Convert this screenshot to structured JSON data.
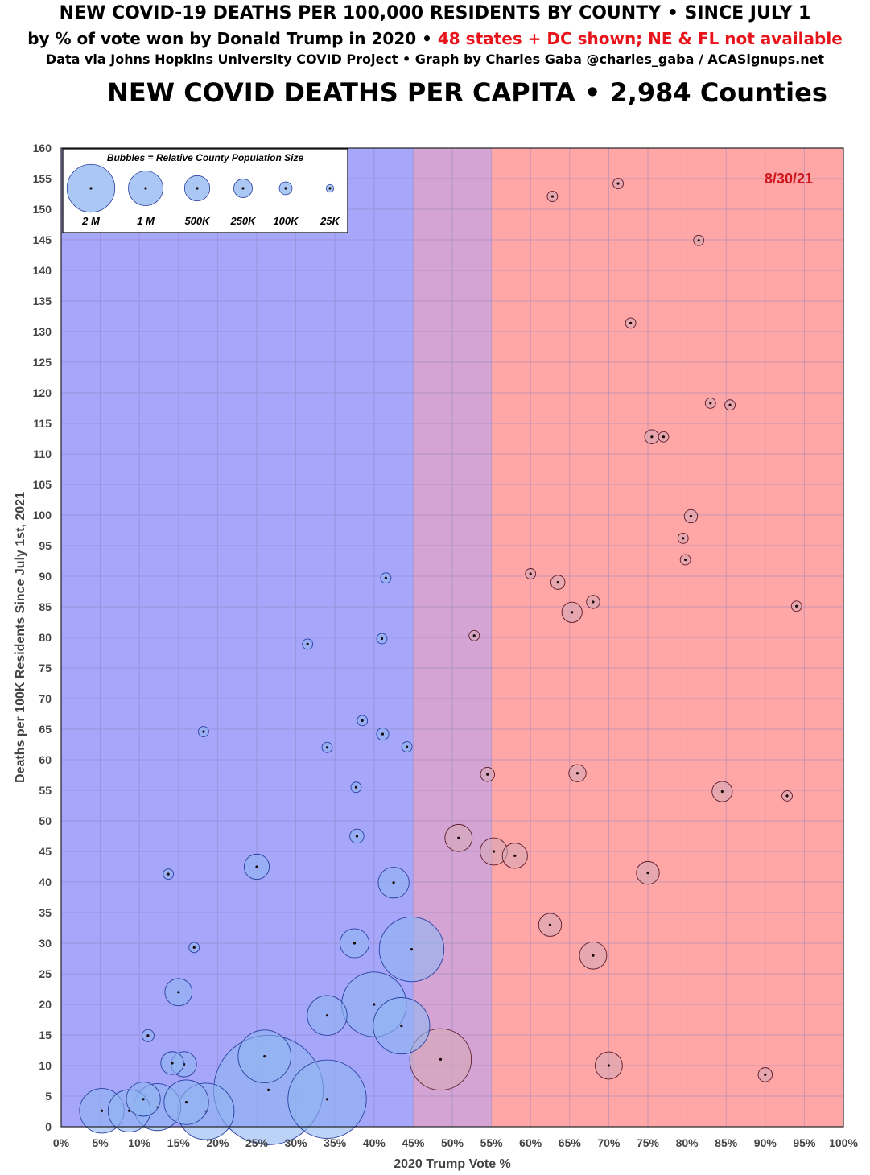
{
  "header": {
    "line1": "NEW COVID-19 DEATHS PER 100,000 RESIDENTS BY COUNTY • SINCE JULY 1",
    "line2_black": "by % of vote won by Donald Trump in 2020 • ",
    "line2_red": "48 states + DC shown; NE & FL not available",
    "line3": "Data via Johns Hopkins University COVID Project • Graph by Charles Gaba @charles_gaba / ACASignups.net"
  },
  "chart_data": {
    "type": "scatter",
    "title": "NEW COVID DEATHS PER CAPITA • 2,984 Counties",
    "xlabel": "2020 Trump Vote %",
    "ylabel": "Deaths per 100K Residents Since July 1st, 2021",
    "date_label": "8/30/21",
    "xlim": [
      0,
      100
    ],
    "ylim": [
      0,
      160
    ],
    "x_step": 5,
    "y_step": 5,
    "x_tick_suffix": "%",
    "grid": true,
    "bands": [
      {
        "from": 0,
        "to": 45,
        "color": "#a6a6fb"
      },
      {
        "from": 45,
        "to": 55,
        "color": "#d4a5d4"
      },
      {
        "from": 55,
        "to": 100,
        "color": "#ffa6a6"
      }
    ],
    "legend": {
      "title": "Bubbles = Relative  County Population Size",
      "placement": "top-left",
      "entries": [
        {
          "label": "2 M",
          "population": 2000000
        },
        {
          "label": "1 M",
          "population": 1000000
        },
        {
          "label": "500K",
          "population": 500000
        },
        {
          "label": "250K",
          "population": 250000
        },
        {
          "label": "100K",
          "population": 100000
        },
        {
          "label": "25K",
          "population": 25000
        }
      ]
    },
    "series_colors": {
      "blue_fill": "#8fb6f2",
      "blue_stroke": "#2a3fa0",
      "red_fill": "#d5a8b6",
      "red_stroke": "#5a1a2a",
      "dot": "#1a0a0a"
    },
    "points": [
      {
        "x": 5.2,
        "y": 2.6,
        "pop": 900000
      },
      {
        "x": 8.7,
        "y": 2.6,
        "pop": 800000
      },
      {
        "x": 10.5,
        "y": 4.5,
        "pop": 500000
      },
      {
        "x": 12.3,
        "y": 3.2,
        "pop": 1000000
      },
      {
        "x": 13.7,
        "y": 41.3,
        "pop": 25000
      },
      {
        "x": 11.1,
        "y": 14.9,
        "pop": 40000
      },
      {
        "x": 14.2,
        "y": 10.4,
        "pop": 200000
      },
      {
        "x": 15.0,
        "y": 22.0,
        "pop": 300000
      },
      {
        "x": 15.7,
        "y": 10.2,
        "pop": 250000
      },
      {
        "x": 16.0,
        "y": 4.0,
        "pop": 900000
      },
      {
        "x": 17.0,
        "y": 29.3,
        "pop": 25000
      },
      {
        "x": 18.2,
        "y": 64.6,
        "pop": 25000
      },
      {
        "x": 18.5,
        "y": 2.5,
        "pop": 1500000
      },
      {
        "x": 25.0,
        "y": 42.5,
        "pop": 250000
      },
      {
        "x": 26.5,
        "y": 6.0,
        "pop": 6000000
      },
      {
        "x": 26.0,
        "y": 11.5,
        "pop": 1300000
      },
      {
        "x": 31.5,
        "y": 78.9,
        "pop": 25000
      },
      {
        "x": 34.0,
        "y": 62.0,
        "pop": 25000
      },
      {
        "x": 34.0,
        "y": 18.2,
        "pop": 700000
      },
      {
        "x": 34.0,
        "y": 4.5,
        "pop": 3000000
      },
      {
        "x": 37.5,
        "y": 30.0,
        "pop": 350000
      },
      {
        "x": 38.5,
        "y": 66.4,
        "pop": 25000
      },
      {
        "x": 37.7,
        "y": 55.5,
        "pop": 25000
      },
      {
        "x": 37.8,
        "y": 47.5,
        "pop": 60000
      },
      {
        "x": 40.0,
        "y": 20.0,
        "pop": 2000000
      },
      {
        "x": 41.0,
        "y": 79.8,
        "pop": 25000
      },
      {
        "x": 41.5,
        "y": 89.7,
        "pop": 25000
      },
      {
        "x": 41.1,
        "y": 64.2,
        "pop": 40000
      },
      {
        "x": 44.2,
        "y": 62.1,
        "pop": 25000
      },
      {
        "x": 42.5,
        "y": 39.9,
        "pop": 400000
      },
      {
        "x": 44.8,
        "y": 29.0,
        "pop": 2000000
      },
      {
        "x": 43.5,
        "y": 16.5,
        "pop": 1500000
      },
      {
        "x": 48.5,
        "y": 11.0,
        "pop": 1800000
      },
      {
        "x": 50.8,
        "y": 47.2,
        "pop": 300000
      },
      {
        "x": 52.8,
        "y": 80.3,
        "pop": 25000
      },
      {
        "x": 54.5,
        "y": 57.6,
        "pop": 60000
      },
      {
        "x": 55.3,
        "y": 45.0,
        "pop": 300000
      },
      {
        "x": 58.0,
        "y": 44.3,
        "pop": 250000
      },
      {
        "x": 60.0,
        "y": 90.4,
        "pop": 25000
      },
      {
        "x": 62.8,
        "y": 152.1,
        "pop": 25000
      },
      {
        "x": 63.5,
        "y": 89.0,
        "pop": 60000
      },
      {
        "x": 65.3,
        "y": 84.1,
        "pop": 150000
      },
      {
        "x": 66.0,
        "y": 57.8,
        "pop": 100000
      },
      {
        "x": 68.0,
        "y": 85.8,
        "pop": 50000
      },
      {
        "x": 71.2,
        "y": 154.2,
        "pop": 25000
      },
      {
        "x": 72.8,
        "y": 131.4,
        "pop": 25000
      },
      {
        "x": 81.5,
        "y": 144.9,
        "pop": 25000
      },
      {
        "x": 83.0,
        "y": 118.3,
        "pop": 25000
      },
      {
        "x": 85.5,
        "y": 118.0,
        "pop": 25000
      },
      {
        "x": 75.5,
        "y": 112.8,
        "pop": 60000
      },
      {
        "x": 77.0,
        "y": 112.8,
        "pop": 25000
      },
      {
        "x": 80.5,
        "y": 99.8,
        "pop": 50000
      },
      {
        "x": 79.5,
        "y": 96.2,
        "pop": 25000
      },
      {
        "x": 79.8,
        "y": 92.7,
        "pop": 25000
      },
      {
        "x": 94.0,
        "y": 85.1,
        "pop": 25000
      },
      {
        "x": 92.8,
        "y": 54.1,
        "pop": 25000
      },
      {
        "x": 84.5,
        "y": 54.8,
        "pop": 150000
      },
      {
        "x": 62.5,
        "y": 33.0,
        "pop": 200000
      },
      {
        "x": 68.0,
        "y": 28.0,
        "pop": 300000
      },
      {
        "x": 75.0,
        "y": 41.5,
        "pop": 200000
      },
      {
        "x": 70.0,
        "y": 10.0,
        "pop": 300000
      },
      {
        "x": 90.0,
        "y": 8.5,
        "pop": 60000
      }
    ]
  }
}
